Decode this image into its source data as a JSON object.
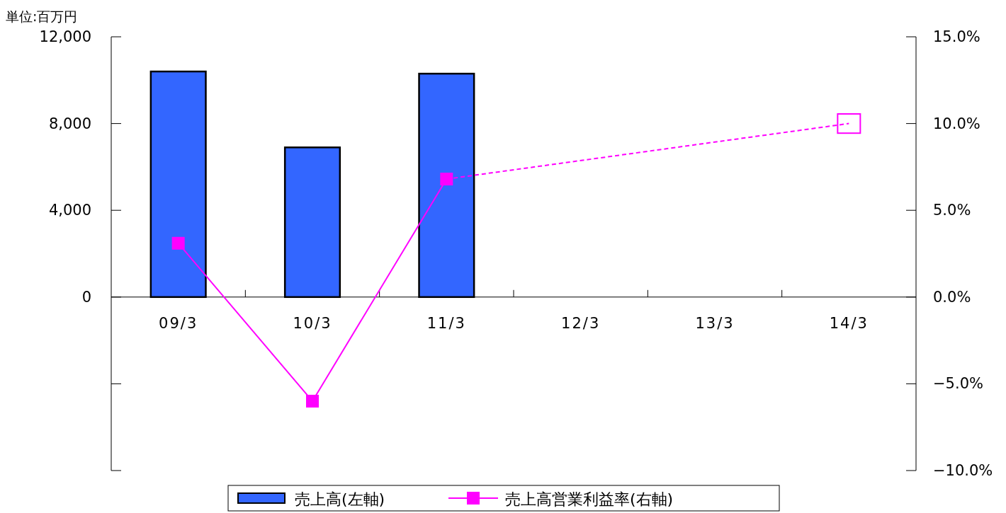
{
  "chart_data": {
    "type": "bar",
    "ylabel": "単位:百万円",
    "categories": [
      "09/3",
      "10/3",
      "11/3",
      "12/3",
      "13/3",
      "14/3"
    ],
    "series": [
      {
        "name": "売上高(左軸)",
        "color": "#3366ff",
        "values": [
          10400,
          6900,
          10300,
          null,
          null,
          null
        ]
      },
      {
        "name": "売上高営業利益率(右軸)",
        "type": "line",
        "axis": "y2",
        "color": "#ff00ff",
        "marker": "square",
        "line_style": "solid",
        "values": [
          3.1,
          -6.0,
          6.8,
          null,
          null,
          null
        ]
      },
      {
        "type": "line",
        "axis": "y2",
        "color": "#ff00ff",
        "marker": "square",
        "line_style": "dashed",
        "values": [
          null,
          null,
          6.8,
          null,
          null,
          10.0
        ]
      }
    ],
    "ylim": [
      -8000,
      12000
    ],
    "yticks": [
      {
        "value": -8000,
        "label": null
      },
      {
        "value": -4000,
        "label": null
      },
      0,
      {
        "value": 4000,
        "label": "4,000"
      },
      {
        "value": 8000,
        "label": "8,000"
      },
      {
        "value": 12000,
        "label": "12,000"
      }
    ],
    "y2lim": [
      -10,
      15
    ],
    "y2ticks": [
      {
        "value": -10,
        "label": "−10.0%"
      },
      {
        "value": -5,
        "label": "−5.0%"
      },
      {
        "value": 0,
        "label": "0.0%"
      },
      {
        "value": 5,
        "label": "5.0%"
      },
      {
        "value": 10,
        "label": "10.0%"
      },
      {
        "value": 15,
        "label": "15.0%"
      }
    ],
    "legend": "bottom"
  }
}
